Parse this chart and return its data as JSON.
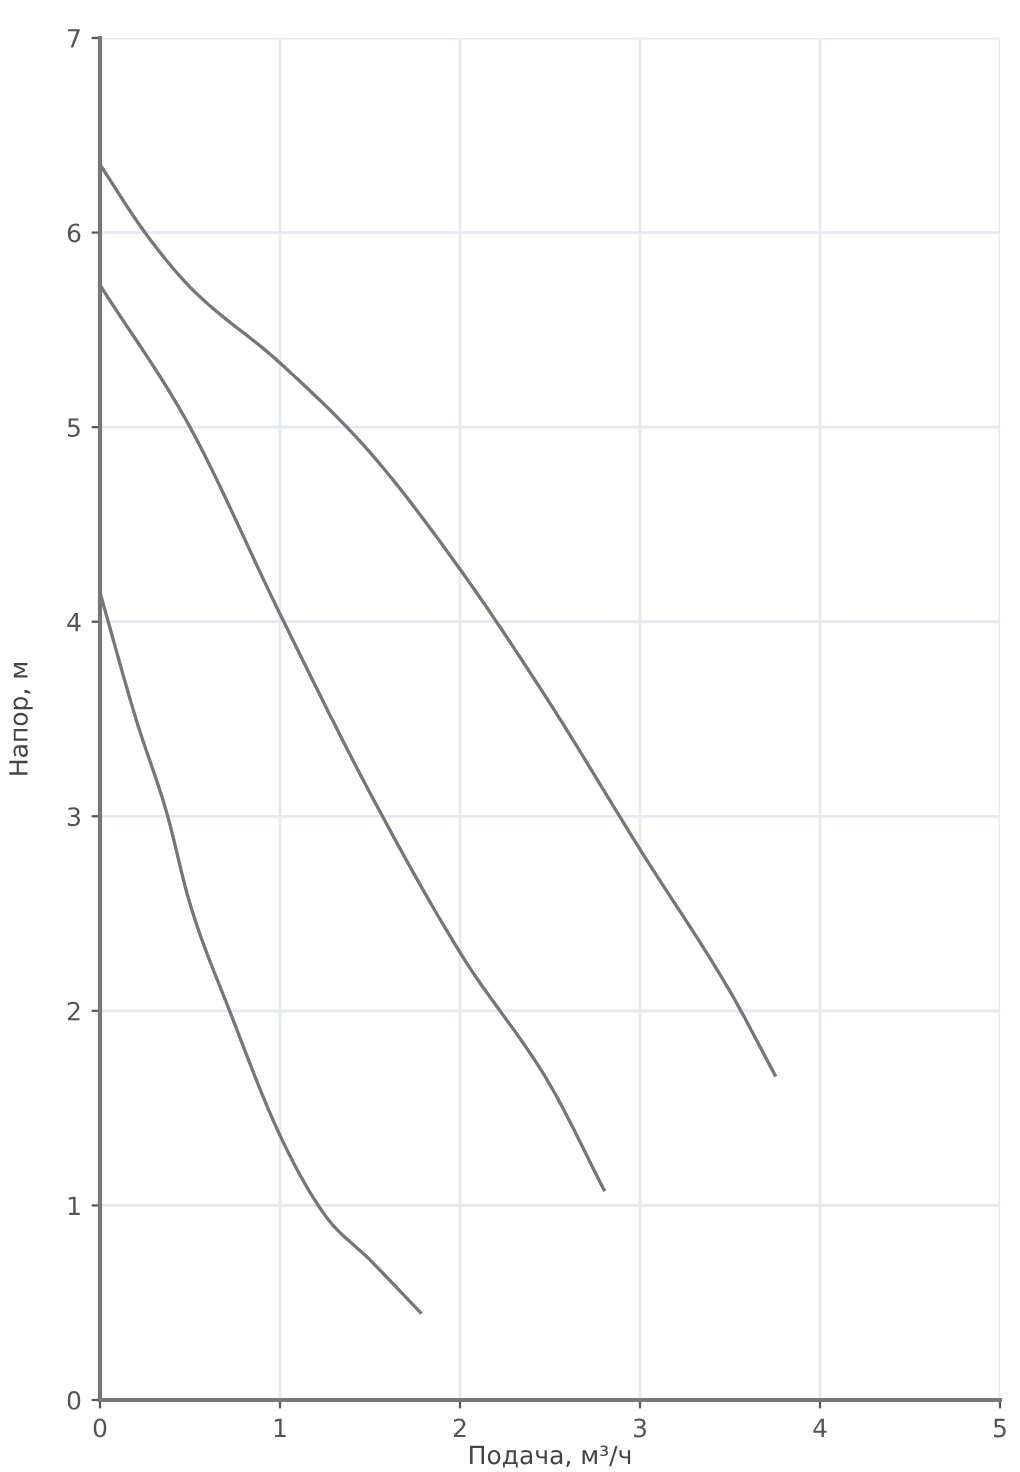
{
  "chart_data": {
    "type": "line",
    "xlabel": "Подача, м³/ч",
    "ylabel": "Напор, м",
    "xlim": [
      0,
      5
    ],
    "ylim": [
      0,
      7
    ],
    "xticks": [
      0,
      1,
      2,
      3,
      4,
      5
    ],
    "yticks": [
      0,
      1,
      2,
      3,
      4,
      5,
      6,
      7
    ],
    "grid": true,
    "marker": "none",
    "line_style": "solid",
    "series": [
      {
        "color": "#777777",
        "x": [
          0,
          0.25,
          0.5,
          1,
          1.5,
          2,
          2.5,
          3,
          3.5,
          3.75
        ],
        "values": [
          6.35,
          6.0,
          5.72,
          5.33,
          4.87,
          4.27,
          3.58,
          2.83,
          2.1,
          1.67
        ]
      },
      {
        "color": "#777777",
        "x": [
          0,
          0.5,
          1,
          1.5,
          2,
          2.5,
          2.8
        ],
        "values": [
          5.73,
          5.0,
          4.04,
          3.12,
          2.3,
          1.62,
          1.08
        ]
      },
      {
        "color": "#777777",
        "x": [
          0,
          0.2,
          0.37,
          0.5,
          0.72,
          1,
          1.25,
          1.5,
          1.78
        ],
        "values": [
          4.15,
          3.5,
          3.02,
          2.55,
          2.0,
          1.36,
          0.95,
          0.72,
          0.45
        ]
      }
    ]
  }
}
